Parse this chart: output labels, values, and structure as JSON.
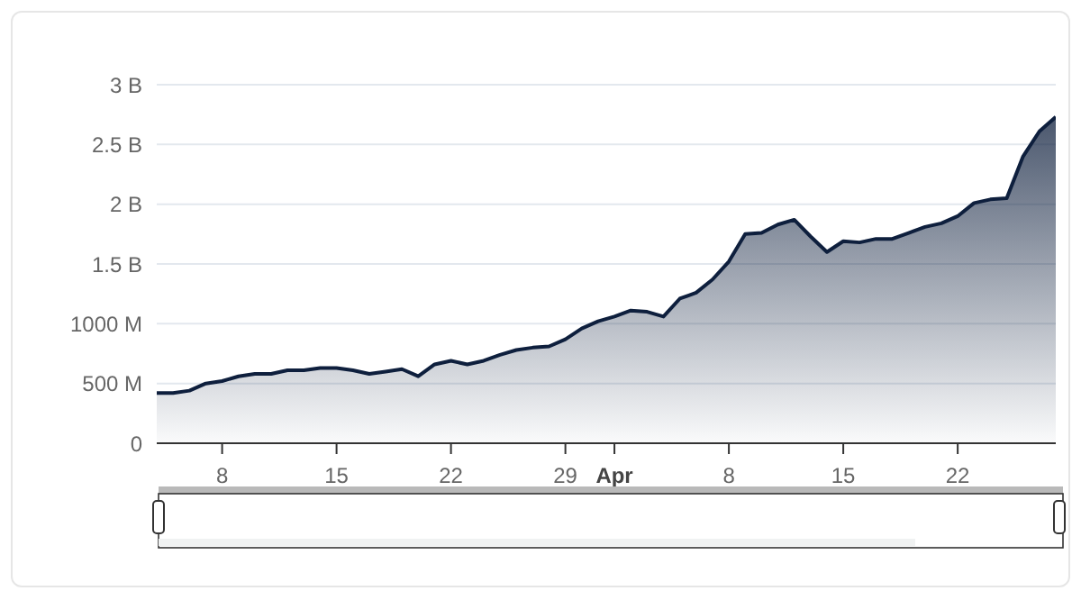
{
  "chart_data": {
    "type": "area",
    "x": [
      "--03-04",
      "--03-05",
      "--03-06",
      "--03-07",
      "--03-08",
      "--03-09",
      "--03-10",
      "--03-11",
      "--03-12",
      "--03-13",
      "--03-14",
      "--03-15",
      "--03-16",
      "--03-17",
      "--03-18",
      "--03-19",
      "--03-20",
      "--03-21",
      "--03-22",
      "--03-23",
      "--03-24",
      "--03-25",
      "--03-26",
      "--03-27",
      "--03-28",
      "--03-29",
      "--03-30",
      "--03-31",
      "--04-01",
      "--04-02",
      "--04-03",
      "--04-04",
      "--04-05",
      "--04-06",
      "--04-07",
      "--04-08",
      "--04-09",
      "--04-10",
      "--04-11",
      "--04-12",
      "--04-13",
      "--04-14",
      "--04-15",
      "--04-16",
      "--04-17",
      "--04-18",
      "--04-19",
      "--04-20",
      "--04-21",
      "--04-22",
      "--04-23",
      "--04-24",
      "--04-25",
      "--04-26",
      "--04-27",
      "--04-28"
    ],
    "series": [
      {
        "color": "#0e1f3d",
        "values": [
          420000000,
          420000000,
          440000000,
          500000000,
          520000000,
          560000000,
          580000000,
          580000000,
          610000000,
          610000000,
          630000000,
          630000000,
          610000000,
          580000000,
          600000000,
          620000000,
          560000000,
          660000000,
          690000000,
          660000000,
          690000000,
          740000000,
          780000000,
          800000000,
          810000000,
          870000000,
          960000000,
          1020000000,
          1060000000,
          1110000000,
          1100000000,
          1060000000,
          1210000000,
          1260000000,
          1370000000,
          1520000000,
          1750000000,
          1760000000,
          1830000000,
          1870000000,
          1730000000,
          1600000000,
          1690000000,
          1680000000,
          1710000000,
          1710000000,
          1760000000,
          1810000000,
          1840000000,
          1900000000,
          2010000000,
          2040000000,
          2050000000,
          2400000000,
          2610000000,
          2730000000
        ]
      }
    ],
    "xlim": [
      "--03-04",
      "--04-28"
    ],
    "xticks": [
      {
        "value": "--03-08",
        "label": "8"
      },
      {
        "value": "--03-15",
        "label": "15"
      },
      {
        "value": "--03-22",
        "label": "22"
      },
      {
        "value": "--03-29",
        "label": "29"
      },
      {
        "value": "--04-01",
        "label": "Apr"
      },
      {
        "value": "--04-08",
        "label": "8"
      },
      {
        "value": "--04-15",
        "label": "15"
      },
      {
        "value": "--04-22",
        "label": "22"
      }
    ],
    "ylim": [
      0,
      3000000000
    ],
    "yticks": [
      0,
      {
        "value": 500000000,
        "label": "500 M"
      },
      {
        "value": 1000000000,
        "label": "1000 M"
      },
      {
        "value": 1500000000,
        "label": "1.5 B"
      },
      {
        "value": 2000000000,
        "label": "2 B"
      },
      {
        "value": 2500000000,
        "label": "2.5 B"
      },
      {
        "value": 3000000000,
        "label": "3 B"
      }
    ],
    "grid": "y",
    "legend": false
  }
}
